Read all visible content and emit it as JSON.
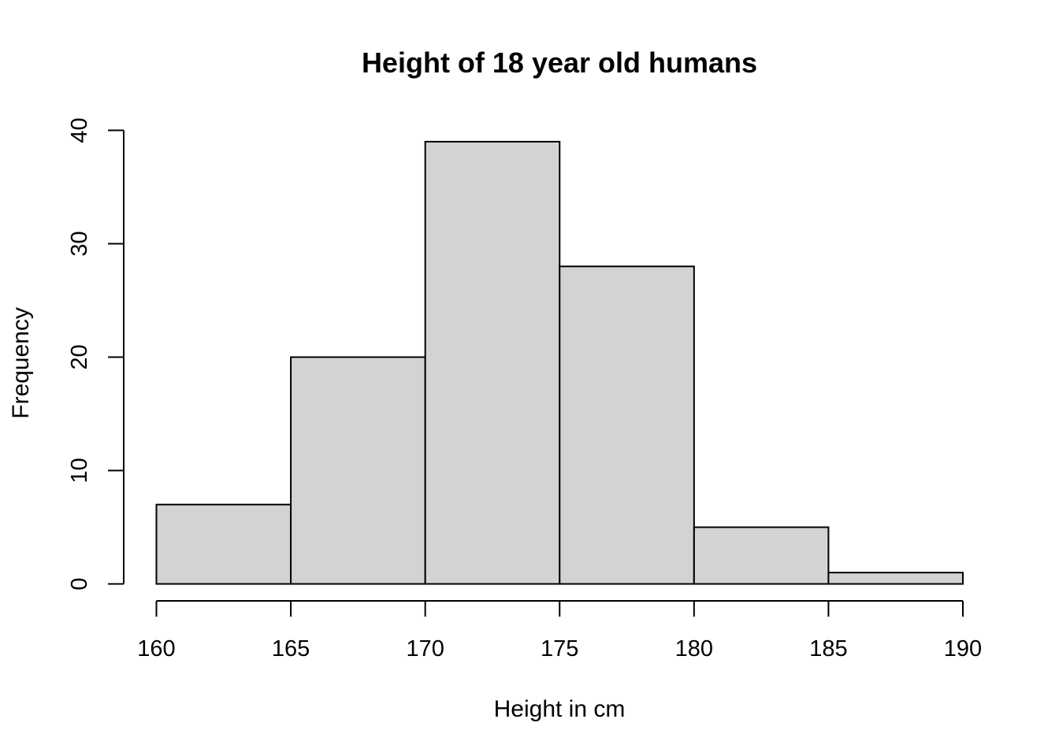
{
  "chart_data": {
    "type": "histogram",
    "title": "Height of 18 year old humans",
    "xlabel": "Height in cm",
    "ylabel": "Frequency",
    "bin_edges": [
      160,
      165,
      170,
      175,
      180,
      185,
      190
    ],
    "values": [
      7,
      20,
      39,
      28,
      5,
      1
    ],
    "xlim": [
      160,
      190
    ],
    "ylim": [
      0,
      40
    ],
    "x_ticks": [
      160,
      165,
      170,
      175,
      180,
      185,
      190
    ],
    "y_ticks": [
      0,
      10,
      20,
      30,
      40
    ],
    "bar_color": "#d3d3d3",
    "grid": false
  }
}
